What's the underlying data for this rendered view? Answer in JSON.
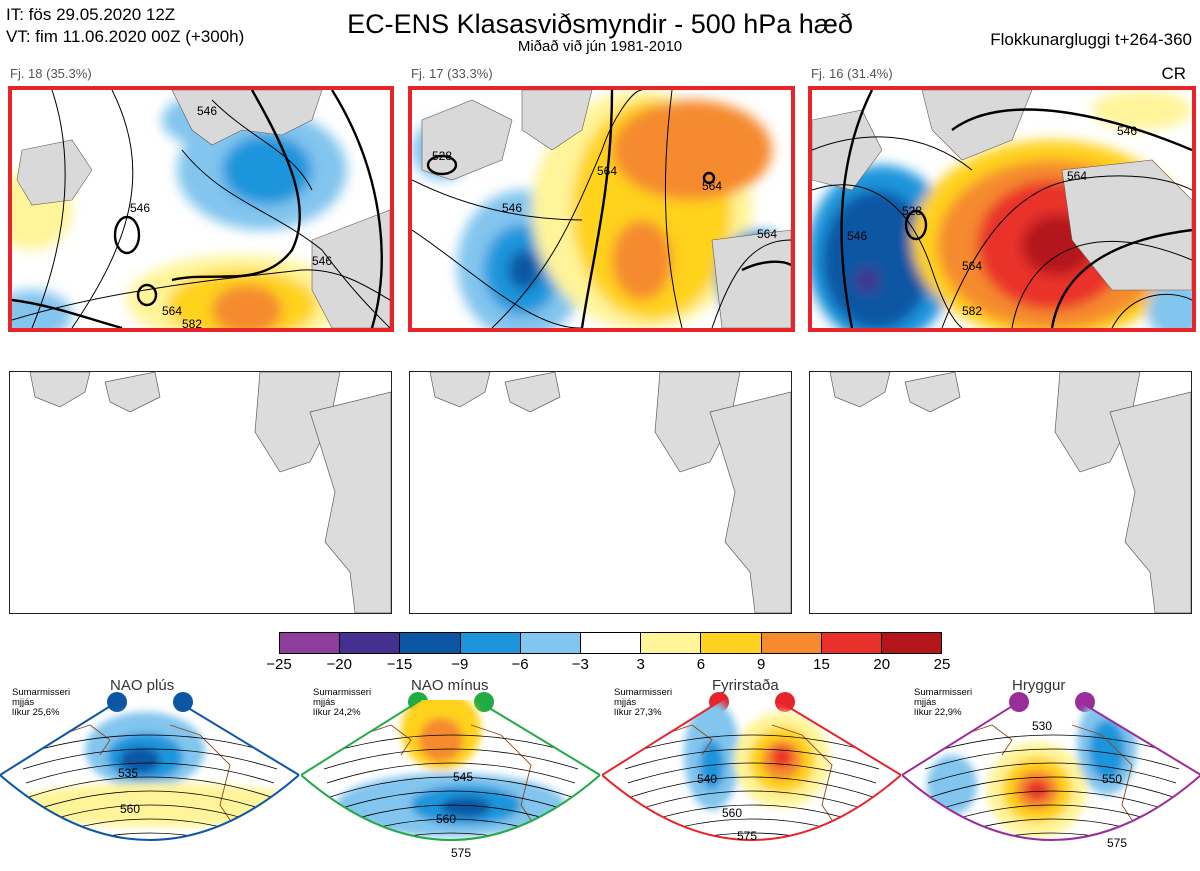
{
  "header": {
    "init_time": "IT: fös 29.05.2020 12Z",
    "valid_time": "VT: fim 11.06.2020 00Z  (+300h)",
    "title": "EC-ENS Klasasviðsmyndir - 500 hPa hæð",
    "subtitle": "Miðað við jún 1981-2010",
    "window": "Flokkunargluggi t+264-360"
  },
  "panels": [
    {
      "label": "Fj. 18 (35.3%)",
      "contours": [
        "546",
        "546",
        "546",
        "564",
        "582"
      ]
    },
    {
      "label": "Fj. 17 (33.3%)",
      "contours": [
        "528",
        "546",
        "564",
        "564",
        "564"
      ]
    },
    {
      "label": "Fj. 16 (31.4%)",
      "contours": [
        "546",
        "528",
        "546",
        "564",
        "564",
        "582"
      ]
    }
  ],
  "cr_label": "CR",
  "colorbar": {
    "ticks": [
      "−25",
      "−20",
      "−15",
      "−9",
      "−6",
      "−3",
      "3",
      "6",
      "9",
      "15",
      "20",
      "25"
    ],
    "colors": [
      "#8c3e9a",
      "#43308f",
      "#0d56a3",
      "#1d95dc",
      "#82c5ee",
      "#ffffff",
      "#fff49a",
      "#ffd21f",
      "#f58a2f",
      "#e9302c",
      "#b3151b"
    ]
  },
  "regimes": [
    {
      "name": "NAO plús",
      "stat1": "Sumarmisseri",
      "stat2": "mjjás",
      "stat3": "líkur 25,6%",
      "color": "#0d56a3",
      "contours": [
        "535",
        "560"
      ]
    },
    {
      "name": "NAO mínus",
      "stat1": "Sumarmisseri",
      "stat2": "mjjás",
      "stat3": "líkur 24,2%",
      "color": "#22aa44",
      "contours": [
        "545",
        "560",
        "575"
      ]
    },
    {
      "name": "Fyrirstaða",
      "stat1": "Sumarmisseri",
      "stat2": "mjjás",
      "stat3": "líkur 27,3%",
      "color": "#e8242b",
      "contours": [
        "540",
        "560",
        "575"
      ]
    },
    {
      "name": "Hryggur",
      "stat1": "Sumarmisseri",
      "stat2": "mjjás",
      "stat3": "líkur 22,9%",
      "color": "#9b2d9b",
      "contours": [
        "530",
        "550",
        "575"
      ]
    }
  ]
}
